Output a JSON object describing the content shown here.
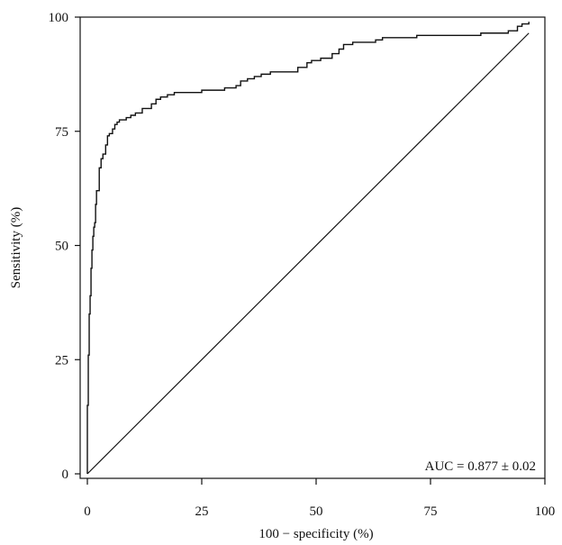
{
  "chart_data": {
    "type": "line",
    "xlabel": "100 − specificity (%)",
    "ylabel": "Sensitivity (%)",
    "xlim": [
      0,
      100
    ],
    "ylim": [
      0,
      100
    ],
    "x_ticks": [
      0,
      25,
      50,
      75,
      100
    ],
    "y_ticks": [
      0,
      25,
      50,
      75,
      100
    ],
    "grid": false,
    "annotation": "AUC = 0.877 ± 0.02",
    "series": [
      {
        "x": [
          0,
          0,
          0.2,
          0.2,
          0.4,
          0.4,
          0.6,
          0.6,
          0.8,
          0.8,
          1.0,
          1.0,
          1.2,
          1.2,
          1.4,
          1.4,
          1.6,
          1.6,
          1.8,
          1.8,
          2.0,
          2.0,
          2.3,
          2.3,
          2.6,
          2.6,
          3.0,
          3.0,
          3.4,
          3.4,
          4.0,
          4.0,
          4.4,
          4.4,
          4.8,
          4.8,
          5.5,
          5.5,
          6.0,
          6.0,
          6.5,
          6.5,
          7.0,
          7.0,
          8.5,
          8.5,
          9.5,
          9.5,
          10.5,
          10.5,
          12.0,
          12.0,
          14.0,
          14.0,
          15.0,
          15.0,
          16.0,
          16.0,
          17.5,
          17.5,
          19.0,
          19.0,
          20.5,
          20.5,
          25.0,
          25.0,
          30.0,
          30.0,
          32.5,
          32.5,
          33.5,
          33.5,
          35.0,
          35.0,
          36.5,
          36.5,
          38.0,
          38.0,
          40.0,
          40.0,
          46.0,
          46.0,
          48.0,
          48.0,
          49.0,
          49.0,
          51.0,
          51.0,
          53.5,
          53.5,
          55.0,
          55.0,
          56.0,
          56.0,
          58.0,
          58.0,
          63.0,
          63.0,
          64.5,
          64.5,
          72.0,
          72.0,
          86.0,
          86.0,
          92.0,
          92.0,
          94.0,
          94.0,
          95.0,
          95.0,
          96.5,
          96.5
        ],
        "y": [
          0,
          15,
          15,
          26,
          26,
          35,
          35,
          39,
          39,
          45,
          45,
          49,
          49,
          52,
          52,
          54,
          54,
          55,
          55,
          59,
          59,
          62,
          62,
          62,
          62,
          67,
          67,
          69,
          69,
          70,
          70,
          72,
          72,
          74,
          74,
          74.5,
          74.5,
          75.5,
          75.5,
          76.5,
          76.5,
          77,
          77,
          77.5,
          77.5,
          78,
          78,
          78.5,
          78.5,
          79,
          79,
          80,
          80,
          81,
          81,
          82,
          82,
          82.5,
          82.5,
          83,
          83,
          83.5,
          83.5,
          83.5,
          83.5,
          84,
          84,
          84.5,
          84.5,
          85,
          85,
          86,
          86,
          86.5,
          86.5,
          87,
          87,
          87.5,
          87.5,
          88,
          88,
          89,
          89,
          90,
          90,
          90.5,
          90.5,
          91,
          91,
          92,
          92,
          93,
          93,
          94,
          94,
          94.5,
          94.5,
          95,
          95,
          95.5,
          95.5,
          96,
          96,
          96.5,
          96.5,
          97,
          97,
          98,
          98,
          98.5,
          98.5,
          99
        ]
      }
    ],
    "diagonal": {
      "x": [
        0,
        96.5
      ],
      "y": [
        0,
        96.5
      ]
    }
  }
}
